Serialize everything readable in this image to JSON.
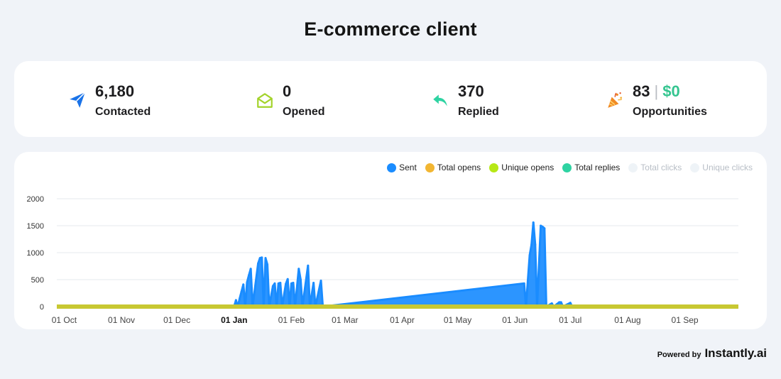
{
  "title": "E-commerce client",
  "stats": [
    {
      "value": "6,180",
      "label": "Contacted",
      "icon": "paper-plane-icon"
    },
    {
      "value": "0",
      "label": "Opened",
      "icon": "open-envelope-icon"
    },
    {
      "value": "370",
      "label": "Replied",
      "icon": "reply-arrow-icon"
    },
    {
      "value": "83",
      "money": "$0",
      "separator": "|",
      "label": "Opportunities",
      "icon": "party-popper-icon"
    }
  ],
  "colors": {
    "sent": "#1a8cff",
    "total_opens": "#f2b632",
    "unique_opens": "#b7e816",
    "total_replies": "#2ed3a2",
    "total_clicks": "#eef3f7",
    "unique_clicks": "#eef3f7",
    "baseline": "#c8c832",
    "grid": "#e6e8ec"
  },
  "legend": [
    {
      "label": "Sent",
      "color": "#1a8cff",
      "muted": false
    },
    {
      "label": "Total opens",
      "color": "#f2b632",
      "muted": false
    },
    {
      "label": "Unique opens",
      "color": "#b7e816",
      "muted": false
    },
    {
      "label": "Total replies",
      "color": "#2ed3a2",
      "muted": false
    },
    {
      "label": "Total clicks",
      "color": "#eef3f7",
      "muted": true
    },
    {
      "label": "Unique clicks",
      "color": "#eef3f7",
      "muted": true
    }
  ],
  "chart_data": {
    "type": "area",
    "title": "",
    "xlabel": "",
    "ylabel": "",
    "ylim": [
      0,
      2000
    ],
    "y_ticks": [
      0,
      500,
      1000,
      1500,
      2000
    ],
    "x_range": [
      "2023-09-27",
      "2024-09-30"
    ],
    "x_ticks": [
      {
        "date": "2023-10-01",
        "label": "01 Oct",
        "bold": false
      },
      {
        "date": "2023-11-01",
        "label": "01 Nov",
        "bold": false
      },
      {
        "date": "2023-12-01",
        "label": "01 Dec",
        "bold": false
      },
      {
        "date": "2024-01-01",
        "label": "01 Jan",
        "bold": true
      },
      {
        "date": "2024-02-01",
        "label": "01 Feb",
        "bold": false
      },
      {
        "date": "2024-03-01",
        "label": "01 Mar",
        "bold": false
      },
      {
        "date": "2024-04-01",
        "label": "01 Apr",
        "bold": false
      },
      {
        "date": "2024-05-01",
        "label": "01 May",
        "bold": false
      },
      {
        "date": "2024-06-01",
        "label": "01 Jun",
        "bold": false
      },
      {
        "date": "2024-07-01",
        "label": "01 Jul",
        "bold": false
      },
      {
        "date": "2024-08-01",
        "label": "01 Aug",
        "bold": false
      },
      {
        "date": "2024-09-01",
        "label": "01 Sep",
        "bold": false
      }
    ],
    "grid": true,
    "legend_position": "top-right",
    "series": [
      {
        "name": "Sent",
        "points": [
          [
            "2024-01-01",
            0
          ],
          [
            "2024-01-02",
            120
          ],
          [
            "2024-01-03",
            0
          ],
          [
            "2024-01-04",
            150
          ],
          [
            "2024-01-05",
            280
          ],
          [
            "2024-01-06",
            410
          ],
          [
            "2024-01-07",
            0
          ],
          [
            "2024-01-08",
            450
          ],
          [
            "2024-01-09",
            580
          ],
          [
            "2024-01-10",
            700
          ],
          [
            "2024-01-11",
            0
          ],
          [
            "2024-01-14",
            800
          ],
          [
            "2024-01-15",
            900
          ],
          [
            "2024-01-16",
            910
          ],
          [
            "2024-01-17",
            0
          ],
          [
            "2024-01-18",
            900
          ],
          [
            "2024-01-19",
            780
          ],
          [
            "2024-01-20",
            0
          ],
          [
            "2024-01-22",
            380
          ],
          [
            "2024-01-23",
            430
          ],
          [
            "2024-01-24",
            0
          ],
          [
            "2024-01-25",
            430
          ],
          [
            "2024-01-26",
            440
          ],
          [
            "2024-01-27",
            0
          ],
          [
            "2024-01-29",
            420
          ],
          [
            "2024-01-30",
            510
          ],
          [
            "2024-01-31",
            0
          ],
          [
            "2024-02-01",
            430
          ],
          [
            "2024-02-02",
            440
          ],
          [
            "2024-02-03",
            0
          ],
          [
            "2024-02-05",
            700
          ],
          [
            "2024-02-06",
            500
          ],
          [
            "2024-02-07",
            0
          ],
          [
            "2024-02-10",
            760
          ],
          [
            "2024-02-11",
            0
          ],
          [
            "2024-02-13",
            440
          ],
          [
            "2024-02-14",
            0
          ],
          [
            "2024-02-17",
            480
          ],
          [
            "2024-02-18",
            0
          ],
          [
            "2024-06-06",
            430
          ],
          [
            "2024-06-07",
            0
          ],
          [
            "2024-06-09",
            950
          ],
          [
            "2024-06-10",
            1150
          ],
          [
            "2024-06-11",
            1560
          ],
          [
            "2024-06-12",
            1150
          ],
          [
            "2024-06-13",
            0
          ],
          [
            "2024-06-15",
            1500
          ],
          [
            "2024-06-16",
            1480
          ],
          [
            "2024-06-17",
            1450
          ],
          [
            "2024-06-18",
            0
          ],
          [
            "2024-06-21",
            60
          ],
          [
            "2024-06-22",
            0
          ],
          [
            "2024-06-25",
            80
          ],
          [
            "2024-06-26",
            80
          ],
          [
            "2024-06-27",
            0
          ],
          [
            "2024-07-01",
            70
          ],
          [
            "2024-07-02",
            0
          ]
        ]
      },
      {
        "name": "Total opens",
        "points": []
      },
      {
        "name": "Unique opens",
        "points": []
      },
      {
        "name": "Total replies",
        "points": []
      },
      {
        "name": "Total clicks",
        "points": []
      },
      {
        "name": "Unique clicks",
        "points": []
      }
    ]
  },
  "footer": {
    "powered_by": "Powered by",
    "brand": "Instantly.ai"
  }
}
